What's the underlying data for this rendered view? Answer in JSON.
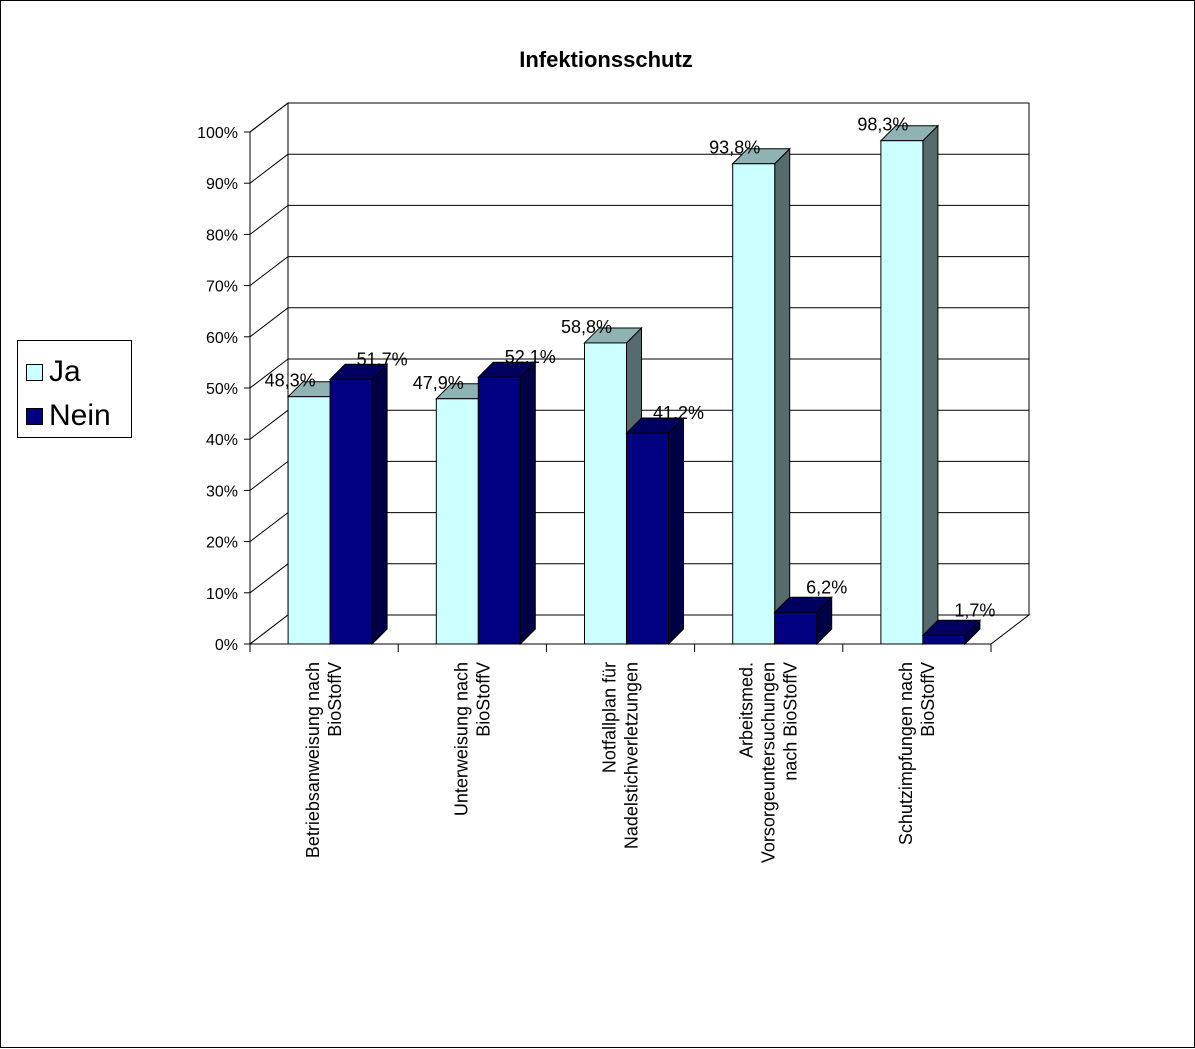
{
  "chart_data": {
    "type": "bar",
    "title": "Infektionsschutz",
    "categories": [
      [
        "Betriebsanweisung nach",
        "BioStoffV"
      ],
      [
        "Unterweisung nach",
        "BioStoffV"
      ],
      [
        "Notfallplan für",
        "Nadelstichverletzungen"
      ],
      [
        "Arbeitsmed.",
        "Vorsorgeuntersuchungen",
        "nach BioStoffV"
      ],
      [
        "Schutzimpfungen nach",
        "BioStoffV"
      ]
    ],
    "series": [
      {
        "name": "Ja",
        "color": "#ccffff",
        "values": [
          48.3,
          47.9,
          58.8,
          93.8,
          98.3
        ],
        "labels": [
          "48,3%",
          "47,9%",
          "58,8%",
          "93,8%",
          "98,3%"
        ]
      },
      {
        "name": "Nein",
        "color": "#000080",
        "values": [
          51.7,
          52.1,
          41.2,
          6.2,
          1.7
        ],
        "labels": [
          "51,7%",
          "52,1%",
          "41,2%",
          "6,2%",
          "1,7%"
        ]
      }
    ],
    "ylim": [
      0,
      100
    ],
    "yticks": [
      "0%",
      "10%",
      "20%",
      "30%",
      "40%",
      "50%",
      "60%",
      "70%",
      "80%",
      "90%",
      "100%"
    ],
    "legend_position": "left",
    "grid": true,
    "three_d": true
  }
}
